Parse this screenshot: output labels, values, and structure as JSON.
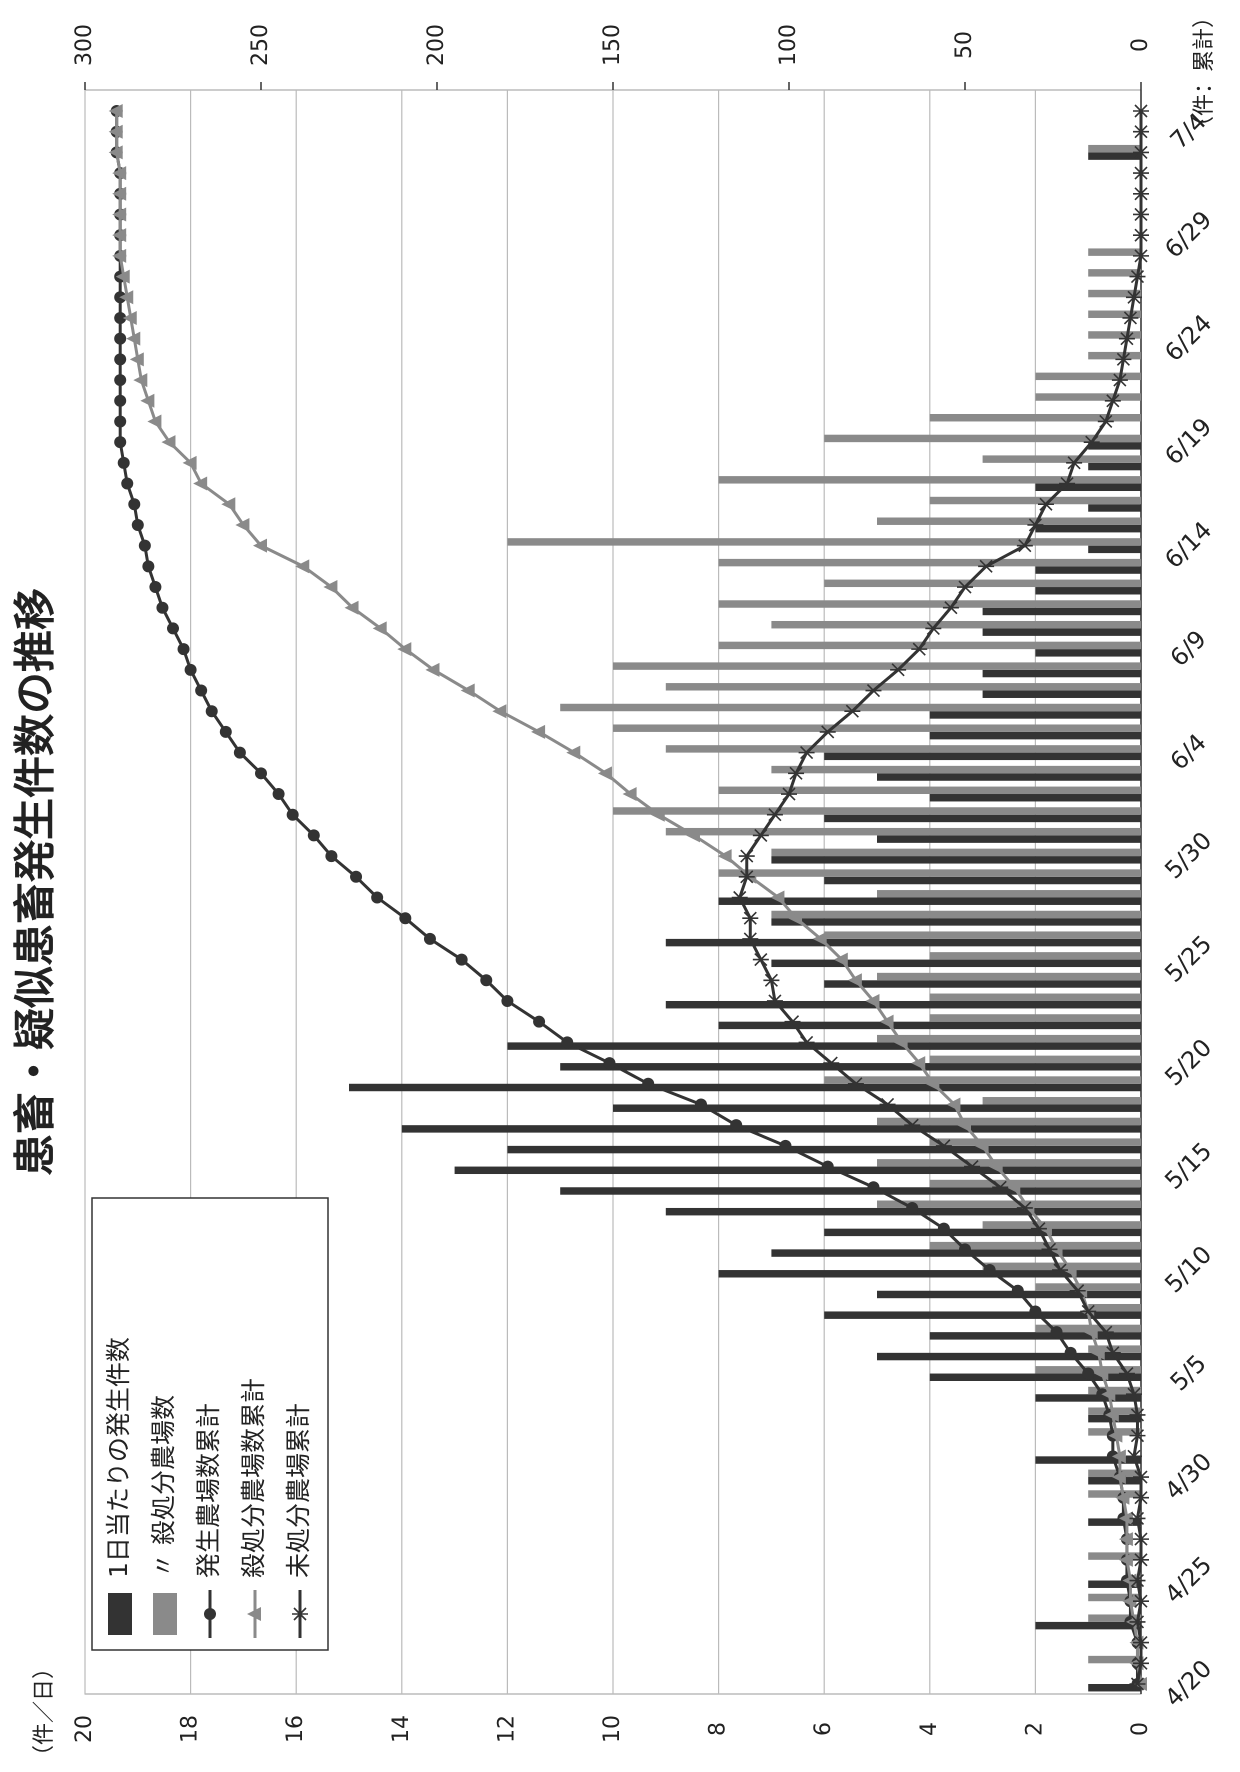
{
  "chart_data": {
    "type": "bar",
    "title": "患畜・疑似患畜発生件数の推移",
    "y_label": "（件／日）",
    "y2_label": "（件：累計）",
    "categories": [
      "4/20",
      null,
      null,
      null,
      null,
      "4/25",
      null,
      null,
      null,
      null,
      "4/30",
      null,
      null,
      null,
      null,
      "5/5",
      null,
      null,
      null,
      null,
      "5/10",
      null,
      null,
      null,
      null,
      "5/15",
      null,
      null,
      null,
      null,
      "5/20",
      null,
      null,
      null,
      null,
      "5/25",
      null,
      null,
      null,
      null,
      "5/30",
      null,
      null,
      null,
      null,
      "6/4",
      null,
      null,
      null,
      null,
      "6/9",
      null,
      null,
      null,
      null,
      "6/14",
      null,
      null,
      null,
      null,
      "6/19",
      null,
      null,
      null,
      null,
      "6/24",
      null,
      null,
      null,
      null,
      "6/29",
      null,
      null,
      null,
      null,
      "7/4",
      null
    ],
    "ylim": [
      0,
      20
    ],
    "yticks": [
      0,
      2,
      4,
      6,
      8,
      10,
      12,
      14,
      16,
      18,
      20
    ],
    "y2lim": [
      0,
      300
    ],
    "y2ticks": [
      0,
      50,
      100,
      150,
      200,
      250,
      300
    ],
    "grid": true,
    "legend": "upper left",
    "series": [
      {
        "name": "1日当たりの発生件数",
        "type": "bar",
        "color": "#333333",
        "values": [
          1,
          0,
          0,
          2,
          0,
          1,
          0,
          0,
          1,
          0,
          1,
          2,
          0,
          1,
          2,
          4,
          5,
          4,
          6,
          5,
          8,
          7,
          6,
          9,
          11,
          13,
          12,
          14,
          10,
          15,
          11,
          12,
          8,
          9,
          6,
          7,
          9,
          7,
          8,
          6,
          7,
          5,
          6,
          4,
          5,
          6,
          4,
          4,
          3,
          3,
          2,
          3,
          3,
          2,
          2,
          1,
          2,
          1,
          2,
          1,
          1,
          0,
          0,
          0,
          0,
          0,
          0,
          0,
          0,
          0,
          0,
          0,
          0,
          0,
          1,
          0,
          0
        ]
      },
      {
        "name": "〃 殺処分農場数",
        "type": "bar",
        "color": "#8a8a8a",
        "values": [
          0,
          1,
          0,
          1,
          1,
          0,
          1,
          0,
          0,
          1,
          1,
          0,
          1,
          1,
          1,
          2,
          1,
          2,
          1,
          2,
          3,
          4,
          3,
          5,
          4,
          5,
          4,
          5,
          3,
          6,
          4,
          5,
          4,
          4,
          5,
          4,
          6,
          7,
          5,
          8,
          7,
          9,
          10,
          8,
          7,
          9,
          10,
          11,
          9,
          10,
          8,
          7,
          8,
          6,
          8,
          12,
          5,
          4,
          8,
          3,
          6,
          4,
          2,
          2,
          1,
          1,
          1,
          1,
          1,
          1,
          0,
          0,
          0,
          0,
          1,
          0,
          0
        ]
      },
      {
        "name": "発生農場数累計",
        "type": "line",
        "marker": "circle",
        "axis": "y2",
        "color": "#333333",
        "values": [
          1,
          1,
          1,
          3,
          3,
          4,
          4,
          4,
          5,
          5,
          6,
          8,
          8,
          9,
          11,
          15,
          20,
          24,
          30,
          35,
          43,
          50,
          56,
          65,
          76,
          89,
          101,
          115,
          125,
          140,
          151,
          163,
          171,
          180,
          186,
          193,
          202,
          209,
          217,
          223,
          230,
          235,
          241,
          245,
          250,
          256,
          260,
          264,
          267,
          270,
          272,
          275,
          278,
          280,
          282,
          283,
          285,
          286,
          288,
          289,
          290,
          290,
          290,
          290,
          290,
          290,
          290,
          290,
          290,
          290,
          290,
          290,
          290,
          290,
          291,
          291,
          291
        ]
      },
      {
        "name": "殺処分農場数累計",
        "type": "line",
        "marker": "triangle",
        "axis": "y2",
        "color": "#8a8a8a",
        "values": [
          0,
          1,
          1,
          2,
          3,
          3,
          4,
          4,
          4,
          5,
          6,
          6,
          7,
          8,
          9,
          11,
          12,
          14,
          15,
          17,
          20,
          24,
          27,
          32,
          36,
          41,
          45,
          50,
          53,
          59,
          63,
          68,
          72,
          76,
          81,
          85,
          91,
          98,
          103,
          111,
          118,
          127,
          137,
          145,
          152,
          161,
          171,
          182,
          191,
          201,
          209,
          216,
          224,
          230,
          238,
          250,
          255,
          259,
          267,
          270,
          276,
          280,
          282,
          284,
          285,
          286,
          287,
          288,
          289,
          290,
          290,
          290,
          290,
          290,
          291,
          291,
          291
        ]
      },
      {
        "name": "未処分農場累計",
        "type": "line",
        "marker": "asterisk",
        "axis": "y2",
        "color": "#333333",
        "values": [
          1,
          0,
          0,
          1,
          0,
          1,
          0,
          0,
          1,
          0,
          0,
          2,
          1,
          1,
          2,
          4,
          8,
          10,
          15,
          18,
          23,
          26,
          29,
          33,
          40,
          48,
          56,
          65,
          72,
          81,
          88,
          95,
          99,
          104,
          105,
          108,
          111,
          111,
          114,
          112,
          112,
          108,
          104,
          100,
          98,
          95,
          89,
          82,
          76,
          69,
          63,
          59,
          54,
          50,
          44,
          33,
          30,
          27,
          21,
          19,
          14,
          10,
          8,
          6,
          5,
          4,
          3,
          2,
          1,
          0,
          0,
          0,
          0,
          0,
          0,
          0,
          0
        ]
      }
    ]
  }
}
